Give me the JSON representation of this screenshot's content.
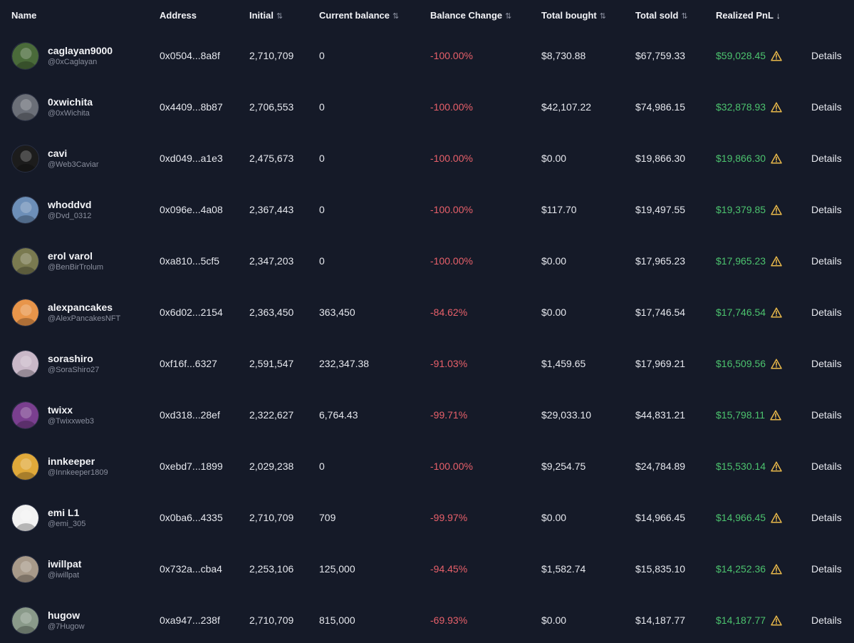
{
  "columns": {
    "name": "Name",
    "address": "Address",
    "initial": "Initial",
    "current_balance": "Current balance",
    "balance_change": "Balance Change",
    "total_bought": "Total bought",
    "total_sold": "Total sold",
    "realized_pnl": "Realized PnL"
  },
  "details_label": "Details",
  "rows": [
    {
      "name": "caglayan9000",
      "handle": "@0xCaglayan",
      "address": "0x0504...8a8f",
      "initial": "2,710,709",
      "current_balance": "0",
      "balance_change": "-100.00%",
      "total_bought": "$8,730.88",
      "total_sold": "$67,759.33",
      "realized_pnl": "$59,028.45",
      "avatar_color": "#4a6b3a"
    },
    {
      "name": "0xwichita",
      "handle": "@0xWichita",
      "address": "0x4409...8b87",
      "initial": "2,706,553",
      "current_balance": "0",
      "balance_change": "-100.00%",
      "total_bought": "$42,107.22",
      "total_sold": "$74,986.15",
      "realized_pnl": "$32,878.93",
      "avatar_color": "#6b6f78"
    },
    {
      "name": "cavi",
      "handle": "@Web3Caviar",
      "address": "0xd049...a1e3",
      "initial": "2,475,673",
      "current_balance": "0",
      "balance_change": "-100.00%",
      "total_bought": "$0.00",
      "total_sold": "$19,866.30",
      "realized_pnl": "$19,866.30",
      "avatar_color": "#1c1c1c"
    },
    {
      "name": "whoddvd",
      "handle": "@Dvd_0312",
      "address": "0x096e...4a08",
      "initial": "2,367,443",
      "current_balance": "0",
      "balance_change": "-100.00%",
      "total_bought": "$117.70",
      "total_sold": "$19,497.55",
      "realized_pnl": "$19,379.85",
      "avatar_color": "#6d8fb8"
    },
    {
      "name": "erol varol",
      "handle": "@BenBirTrolum",
      "address": "0xa810...5cf5",
      "initial": "2,347,203",
      "current_balance": "0",
      "balance_change": "-100.00%",
      "total_bought": "$0.00",
      "total_sold": "$17,965.23",
      "realized_pnl": "$17,965.23",
      "avatar_color": "#7a7a50"
    },
    {
      "name": "alexpancakes",
      "handle": "@AlexPancakesNFT",
      "address": "0x6d02...2154",
      "initial": "2,363,450",
      "current_balance": "363,450",
      "balance_change": "-84.62%",
      "total_bought": "$0.00",
      "total_sold": "$17,746.54",
      "realized_pnl": "$17,746.54",
      "avatar_color": "#e8954a"
    },
    {
      "name": "sorashiro",
      "handle": "@SoraShiro27",
      "address": "0xf16f...6327",
      "initial": "2,591,547",
      "current_balance": "232,347.38",
      "balance_change": "-91.03%",
      "total_bought": "$1,459.65",
      "total_sold": "$17,969.21",
      "realized_pnl": "$16,509.56",
      "avatar_color": "#c9b8c8"
    },
    {
      "name": "twixx",
      "handle": "@Twixxweb3",
      "address": "0xd318...28ef",
      "initial": "2,322,627",
      "current_balance": "6,764.43",
      "balance_change": "-99.71%",
      "total_bought": "$29,033.10",
      "total_sold": "$44,831.21",
      "realized_pnl": "$15,798.11",
      "avatar_color": "#7a3f8f"
    },
    {
      "name": "innkeeper",
      "handle": "@Innkeeper1809",
      "address": "0xebd7...1899",
      "initial": "2,029,238",
      "current_balance": "0",
      "balance_change": "-100.00%",
      "total_bought": "$9,254.75",
      "total_sold": "$24,784.89",
      "realized_pnl": "$15,530.14",
      "avatar_color": "#e0a93a"
    },
    {
      "name": "emi L1",
      "handle": "@emi_305",
      "address": "0x0ba6...4335",
      "initial": "2,710,709",
      "current_balance": "709",
      "balance_change": "-99.97%",
      "total_bought": "$0.00",
      "total_sold": "$14,966.45",
      "realized_pnl": "$14,966.45",
      "avatar_color": "#f2f2f2"
    },
    {
      "name": "iwillpat",
      "handle": "@iwillpat",
      "address": "0x732a...cba4",
      "initial": "2,253,106",
      "current_balance": "125,000",
      "balance_change": "-94.45%",
      "total_bought": "$1,582.74",
      "total_sold": "$15,835.10",
      "realized_pnl": "$14,252.36",
      "avatar_color": "#a89a8a"
    },
    {
      "name": "hugow",
      "handle": "@7Hugow",
      "address": "0xa947...238f",
      "initial": "2,710,709",
      "current_balance": "815,000",
      "balance_change": "-69.93%",
      "total_bought": "$0.00",
      "total_sold": "$14,187.77",
      "realized_pnl": "$14,187.77",
      "avatar_color": "#8a9a8a"
    }
  ],
  "colors": {
    "background": "#151a28",
    "negative": "#e8606a",
    "positive": "#4cc36e",
    "warning": "#e8b84a"
  },
  "icons": {
    "sort": "sort-icon",
    "sort_active": "sort-desc-icon",
    "warning": "warning-icon"
  }
}
